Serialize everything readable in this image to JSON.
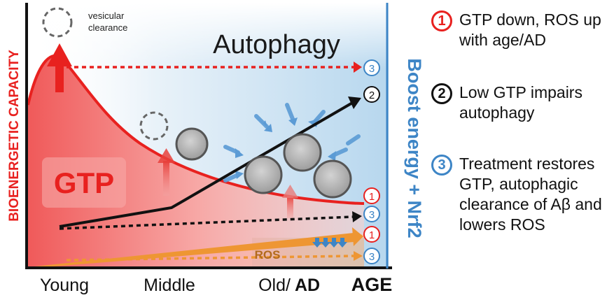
{
  "diagram": {
    "y_axis_label": "BIOENERGETIC CAPACITY",
    "right_axis_label": "Boost energy + Nrf2",
    "x_axis_label": "AGE",
    "x_ticks": [
      "Young",
      "Middle",
      "Old/"
    ],
    "x_tick_bold": "AD",
    "title": "Autophagy",
    "vesicular_clearance_label": "vesicular\nclearance",
    "gtp_label": "GTP",
    "ros_label": "ROS",
    "markers": {
      "top_3": "3",
      "black_2": "2",
      "red_1": "1",
      "mid_3": "3",
      "orange_1": "1",
      "bottom_3": "3"
    },
    "colors": {
      "red": "#e8211f",
      "blue": "#3d85c6",
      "black": "#111111",
      "orange": "#ee9633"
    }
  },
  "legend": [
    {
      "number": "1",
      "text": "GTP down, ROS up with age/AD",
      "color": "#e8211f"
    },
    {
      "number": "2",
      "text": "Low GTP impairs autophagy",
      "color": "#111111"
    },
    {
      "number": "3",
      "text": "Treatment restores GTP, autophagic clearance of Aβ and lowers ROS",
      "color": "#3d85c6"
    }
  ]
}
